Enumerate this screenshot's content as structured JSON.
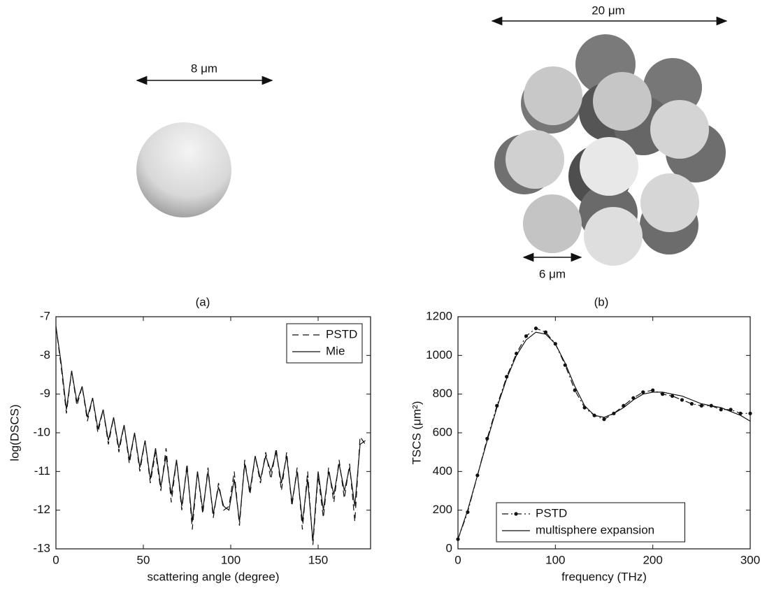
{
  "illustrations": {
    "a": {
      "label": "(a)",
      "dimension": "8 μm"
    },
    "b": {
      "label": "(b)",
      "dimension": "20 μm",
      "sphere_dimension": "6 μm"
    }
  },
  "chart_data": [
    {
      "type": "line",
      "xlabel": "scattering angle (degree)",
      "ylabel": "log(DSCS)",
      "x": [
        0,
        3,
        6,
        9,
        12,
        15,
        18,
        21,
        24,
        27,
        30,
        33,
        36,
        39,
        42,
        45,
        48,
        51,
        54,
        57,
        60,
        63,
        66,
        69,
        72,
        75,
        78,
        81,
        84,
        87,
        90,
        93,
        96,
        99,
        102,
        105,
        108,
        111,
        114,
        117,
        120,
        123,
        126,
        129,
        132,
        135,
        138,
        141,
        144,
        147,
        150,
        153,
        156,
        159,
        162,
        165,
        168,
        171,
        174,
        177
      ],
      "series": [
        {
          "name": "PSTD",
          "color": "#111111",
          "style": "dashed",
          "values": [
            -7.25,
            -8.3,
            -9.5,
            -8.4,
            -9.3,
            -8.8,
            -9.7,
            -9.1,
            -10.0,
            -9.4,
            -10.3,
            -9.6,
            -10.5,
            -9.8,
            -10.8,
            -10.0,
            -11.0,
            -10.2,
            -11.3,
            -10.5,
            -11.5,
            -10.4,
            -11.8,
            -10.7,
            -12.0,
            -10.8,
            -12.5,
            -11.0,
            -12.1,
            -10.9,
            -12.2,
            -11.3,
            -12.0,
            -11.9,
            -11.0,
            -12.4,
            -10.7,
            -11.6,
            -10.6,
            -11.3,
            -10.5,
            -11.2,
            -10.4,
            -11.5,
            -10.5,
            -11.9,
            -10.9,
            -12.5,
            -11.0,
            -12.9,
            -11.1,
            -12.2,
            -10.9,
            -11.8,
            -10.7,
            -11.7,
            -10.8,
            -12.3,
            -10.1,
            -10.3
          ]
        },
        {
          "name": "Mie",
          "color": "#111111",
          "style": "solid",
          "values": [
            -7.25,
            -8.2,
            -9.4,
            -8.4,
            -9.2,
            -8.8,
            -9.6,
            -9.1,
            -9.9,
            -9.4,
            -10.2,
            -9.6,
            -10.4,
            -9.8,
            -10.7,
            -10.0,
            -10.9,
            -10.2,
            -11.2,
            -10.4,
            -11.4,
            -10.6,
            -11.6,
            -10.7,
            -11.9,
            -10.9,
            -12.3,
            -11.0,
            -12.0,
            -11.0,
            -12.1,
            -11.4,
            -11.9,
            -12.0,
            -11.2,
            -12.3,
            -10.8,
            -11.5,
            -10.6,
            -11.2,
            -10.6,
            -11.0,
            -10.5,
            -11.3,
            -10.6,
            -11.8,
            -11.0,
            -12.3,
            -11.2,
            -12.8,
            -11.0,
            -12.0,
            -11.0,
            -11.6,
            -10.8,
            -11.5,
            -10.9,
            -11.9,
            -10.3,
            -10.2
          ]
        }
      ],
      "xlim": [
        0,
        180
      ],
      "ylim": [
        -13,
        -7
      ],
      "xticks": [
        0,
        50,
        100,
        150
      ],
      "yticks": [
        -13,
        -12,
        -11,
        -10,
        -9,
        -8,
        -7
      ],
      "legend": "upper right"
    },
    {
      "type": "line",
      "xlabel": "frequency (THz)",
      "ylabel": "TSCS (μm²)",
      "x": [
        0,
        10,
        20,
        30,
        40,
        50,
        60,
        70,
        80,
        90,
        100,
        110,
        120,
        130,
        140,
        150,
        160,
        170,
        180,
        190,
        200,
        210,
        220,
        230,
        240,
        250,
        260,
        270,
        280,
        290,
        300
      ],
      "series": [
        {
          "name": "PSTD",
          "color": "#111111",
          "style": "dashdot",
          "marker": "dot",
          "values": [
            50,
            190,
            380,
            570,
            740,
            890,
            1010,
            1100,
            1140,
            1120,
            1060,
            950,
            820,
            730,
            690,
            670,
            700,
            740,
            780,
            810,
            820,
            800,
            790,
            770,
            750,
            740,
            740,
            720,
            720,
            700,
            700
          ]
        },
        {
          "name": "multisphere expansion",
          "color": "#111111",
          "style": "solid",
          "values": [
            50,
            200,
            380,
            560,
            730,
            880,
            1000,
            1080,
            1120,
            1110,
            1060,
            960,
            840,
            740,
            690,
            680,
            700,
            730,
            770,
            800,
            810,
            810,
            800,
            790,
            770,
            750,
            740,
            730,
            710,
            690,
            660
          ]
        }
      ],
      "xlim": [
        0,
        300
      ],
      "ylim": [
        0,
        1200
      ],
      "xticks": [
        0,
        100,
        200,
        300
      ],
      "yticks": [
        0,
        200,
        400,
        600,
        800,
        1000,
        1200
      ],
      "legend": "lower left"
    }
  ]
}
